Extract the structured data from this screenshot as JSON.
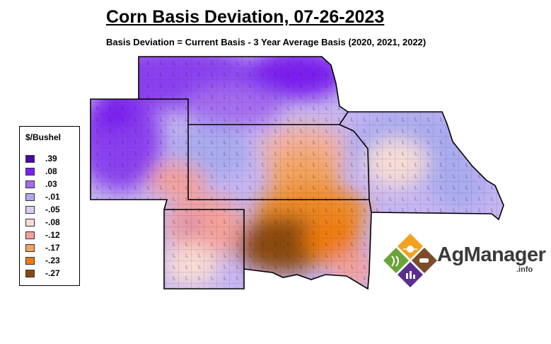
{
  "header": {
    "title": "Corn Basis Deviation, 07-26-2023",
    "subtitle": "Basis Deviation = Current Basis - 3 Year Average Basis (2020, 2021, 2022)"
  },
  "legend": {
    "title": "$/Bushel",
    "items": [
      {
        "label": ".39",
        "color": "#4b0a9e"
      },
      {
        "label": ".08",
        "color": "#7a1ff0"
      },
      {
        "label": ".03",
        "color": "#a56cf0"
      },
      {
        "label": "-.01",
        "color": "#a9aaf0"
      },
      {
        "label": "-.05",
        "color": "#dccdf5"
      },
      {
        "label": "-.08",
        "color": "#f7dcd6"
      },
      {
        "label": "-.12",
        "color": "#f4a09a"
      },
      {
        "label": "-.17",
        "color": "#f2a560"
      },
      {
        "label": "-.23",
        "color": "#ef7c10"
      },
      {
        "label": "-.27",
        "color": "#8a4a0f"
      }
    ]
  },
  "logo": {
    "name": "AgManager",
    "suffix": ".info",
    "colors": {
      "orange": "#f2a21f",
      "brown": "#7b4b2a",
      "green": "#6aa33a",
      "purple": "#5b2d8e"
    }
  }
}
